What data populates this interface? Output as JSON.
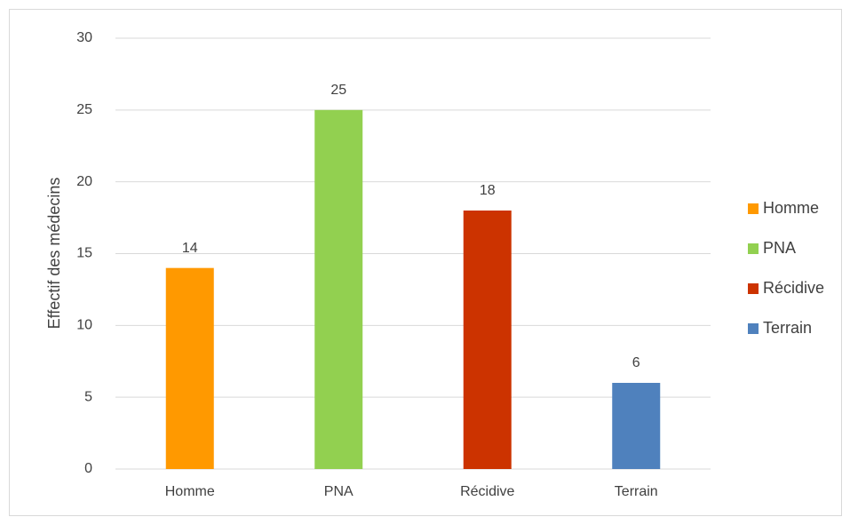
{
  "chart_data": {
    "type": "bar",
    "categories": [
      "Homme",
      "PNA",
      "Récidive",
      "Terrain"
    ],
    "values": [
      14,
      25,
      18,
      6
    ],
    "colors": [
      "#FF9900",
      "#92D050",
      "#CC3300",
      "#4F81BD"
    ],
    "y_label": "Effectif des médecins",
    "ylim": [
      0,
      30
    ],
    "yticks": [
      0,
      5,
      10,
      15,
      20,
      25,
      30
    ],
    "grid": true,
    "legend": "right"
  }
}
